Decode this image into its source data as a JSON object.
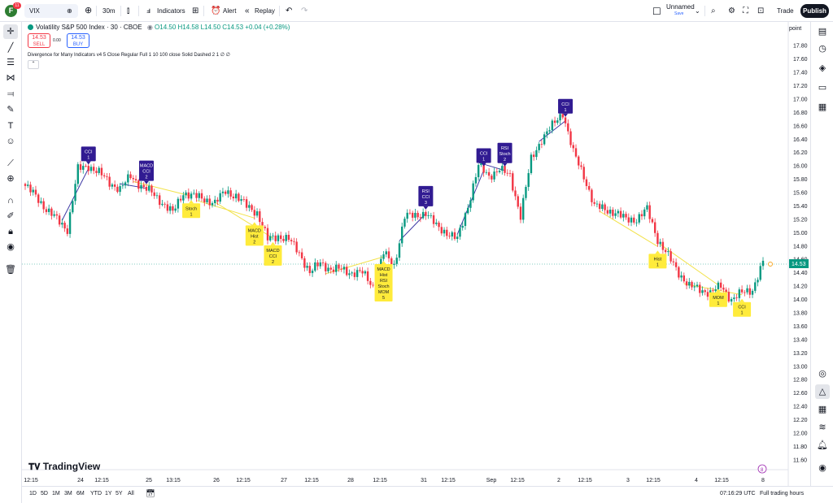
{
  "topbar": {
    "avatar_letter": "F",
    "avatar_badge": "11",
    "symbol": "VIX",
    "interval": "30m",
    "indicators_label": "Indicators",
    "alert_label": "Alert",
    "replay_label": "Replay",
    "layout_name": "Unnamed",
    "layout_status": "Save",
    "trade_label": "Trade",
    "publish_label": "Publish"
  },
  "legend": {
    "title": "Volatility S&P 500 Index · 30 · CBOE",
    "open": "O14.50",
    "high": "H14.58",
    "low": "L14.50",
    "close": "C14.53",
    "change": "+0.04 (+0.28%)",
    "sell_price": "14.53",
    "sell_label": "SELL",
    "spread": "0.00",
    "buy_price": "14.53",
    "buy_label": "BUY",
    "indicator": "Divergence for Many Indicators v4 5 Close Regular Full 1 10 100 close Solid Dashed 2 1  ∅  ∅",
    "collapse_glyph": "⌃"
  },
  "price_axis": {
    "label": "point",
    "ticks": [
      "17.80",
      "17.60",
      "17.40",
      "17.20",
      "17.00",
      "16.80",
      "16.60",
      "16.40",
      "16.20",
      "16.00",
      "15.80",
      "15.60",
      "15.40",
      "15.20",
      "15.00",
      "14.80",
      "14.60",
      "14.40",
      "14.20",
      "14.00",
      "13.80",
      "13.60",
      "13.40",
      "13.20",
      "13.00",
      "12.80",
      "12.60",
      "12.40",
      "12.20",
      "12.00",
      "11.80",
      "11.60"
    ],
    "last_price": "14.53"
  },
  "time_axis": {
    "ticks": [
      "12:15",
      "24",
      "12:15",
      "25",
      "13:15",
      "26",
      "12:15",
      "27",
      "12:15",
      "28",
      "12:15",
      "31",
      "12:15",
      "Sep",
      "12:15",
      "2",
      "12:15",
      "3",
      "12:15",
      "4",
      "12:15",
      "8"
    ]
  },
  "bottombar": {
    "ranges": [
      "1D",
      "5D",
      "1M",
      "3M",
      "6M",
      "YTD",
      "1Y",
      "5Y",
      "All"
    ],
    "clock": "07:16:29 UTC",
    "session": "Full trading hours"
  },
  "branding": {
    "logo_text": "TradingView"
  },
  "colors": {
    "up": "#089981",
    "down": "#f23645",
    "bear_div": "#311b92",
    "bull_div": "#ffeb3b",
    "bear_line": "#3f3aa5",
    "bull_line": "#f2e24a"
  },
  "chart_data": {
    "type": "candlestick",
    "price_anchors": [
      [
        0,
        15.7
      ],
      [
        4,
        15.55
      ],
      [
        8,
        15.35
      ],
      [
        12,
        15.2
      ],
      [
        16,
        15.05
      ],
      [
        20,
        15.95
      ],
      [
        24,
        16.0
      ],
      [
        28,
        15.9
      ],
      [
        32,
        15.75
      ],
      [
        36,
        15.65
      ],
      [
        40,
        15.85
      ],
      [
        44,
        15.7
      ],
      [
        48,
        15.6
      ],
      [
        52,
        15.45
      ],
      [
        56,
        15.3
      ],
      [
        60,
        15.6
      ],
      [
        64,
        15.55
      ],
      [
        68,
        15.5
      ],
      [
        72,
        15.45
      ],
      [
        76,
        15.62
      ],
      [
        80,
        15.55
      ],
      [
        84,
        15.4
      ],
      [
        88,
        15.3
      ],
      [
        92,
        14.9
      ],
      [
        96,
        14.95
      ],
      [
        100,
        14.9
      ],
      [
        104,
        14.7
      ],
      [
        108,
        14.4
      ],
      [
        112,
        14.55
      ],
      [
        116,
        14.45
      ],
      [
        120,
        14.45
      ],
      [
        124,
        14.4
      ],
      [
        128,
        14.4
      ],
      [
        132,
        14.2
      ],
      [
        136,
        14.7
      ],
      [
        140,
        14.5
      ],
      [
        144,
        15.25
      ],
      [
        148,
        15.25
      ],
      [
        152,
        15.3
      ],
      [
        156,
        15.1
      ],
      [
        160,
        15.0
      ],
      [
        164,
        14.9
      ],
      [
        168,
        15.4
      ],
      [
        172,
        16.0
      ],
      [
        176,
        15.85
      ],
      [
        180,
        15.95
      ],
      [
        184,
        15.85
      ],
      [
        188,
        15.25
      ],
      [
        192,
        16.1
      ],
      [
        196,
        16.4
      ],
      [
        200,
        16.6
      ],
      [
        204,
        16.8
      ],
      [
        208,
        16.2
      ],
      [
        212,
        15.85
      ],
      [
        216,
        15.4
      ],
      [
        220,
        15.35
      ],
      [
        224,
        15.3
      ],
      [
        228,
        15.2
      ],
      [
        232,
        15.2
      ],
      [
        236,
        15.35
      ],
      [
        240,
        14.9
      ],
      [
        244,
        14.65
      ],
      [
        248,
        14.4
      ],
      [
        252,
        14.2
      ],
      [
        256,
        14.15
      ],
      [
        260,
        14.1
      ],
      [
        264,
        14.2
      ],
      [
        268,
        14.0
      ],
      [
        272,
        14.1
      ],
      [
        276,
        14.15
      ],
      [
        280,
        14.55
      ]
    ],
    "bear_divergences": [
      {
        "label": "CCI\n1",
        "at": 24
      },
      {
        "label": "MACD\nCCI\n2",
        "at": 46
      },
      {
        "label": "RSI\nCCI\n3",
        "at": 152
      },
      {
        "label": "CCI\n1",
        "at": 174
      },
      {
        "label": "RSI\nStoch\n2",
        "at": 182
      },
      {
        "label": "CCI\n1",
        "at": 205
      }
    ],
    "bull_divergences": [
      {
        "label": "Stoch\n1",
        "at": 63
      },
      {
        "label": "MACD\nHist\n2",
        "at": 87
      },
      {
        "label": "MACD\nCCI\n2",
        "at": 94
      },
      {
        "label": "MACD\nHist\nRSI\nStoch\nMOM\n5",
        "at": 136
      },
      {
        "label": "Hist\n1",
        "at": 240
      },
      {
        "label": "MOM\n1",
        "at": 263
      },
      {
        "label": "CCI\n1",
        "at": 272
      }
    ]
  }
}
